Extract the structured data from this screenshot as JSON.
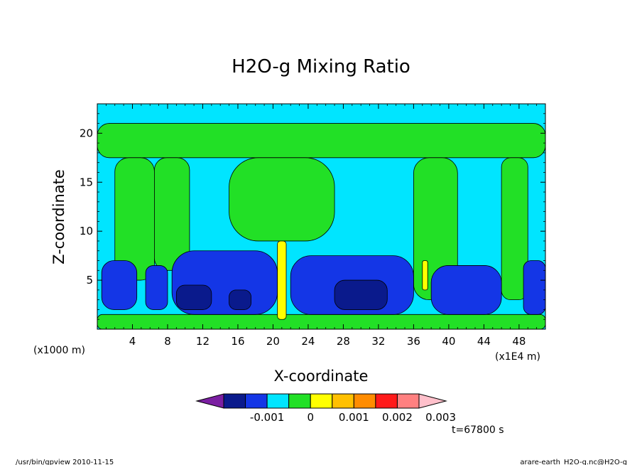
{
  "chart_data": {
    "type": "heatmap",
    "title": "H2O-g Mixing Ratio",
    "xlabel": "X-coordinate",
    "ylabel": "Z-coordinate",
    "x_unit_left": "(x1000 m)",
    "x_unit_right": "(x1E4 m)",
    "x_range": [
      0,
      51
    ],
    "y_range": [
      0,
      23
    ],
    "x_ticks": [
      4,
      8,
      12,
      16,
      20,
      24,
      28,
      32,
      36,
      40,
      44,
      48
    ],
    "y_ticks": [
      5,
      10,
      15,
      20
    ],
    "colorbar": {
      "colors": [
        "#7b1fa2",
        "#0a1a8c",
        "#1436e6",
        "#00e5ff",
        "#22e026",
        "#ffff00",
        "#ffc000",
        "#ff8c00",
        "#ff1a1a",
        "#ff8080",
        "#ffc0cb"
      ],
      "labels": [
        "-0.001",
        "0",
        "0.001",
        "0.002",
        "0.003"
      ],
      "label_positions": [
        -0.001,
        0,
        0.001,
        0.002,
        0.003
      ]
    },
    "regions": [
      {
        "level": "cyan",
        "x": [
          0,
          51
        ],
        "z": [
          0,
          23
        ]
      },
      {
        "level": "green",
        "x": [
          0,
          51
        ],
        "z": [
          17.5,
          21
        ]
      },
      {
        "level": "green",
        "x": [
          2,
          6.5
        ],
        "z": [
          5,
          17.5
        ]
      },
      {
        "level": "green",
        "x": [
          6.5,
          10.5
        ],
        "z": [
          6,
          17.5
        ]
      },
      {
        "level": "green",
        "x": [
          15,
          27
        ],
        "z": [
          9,
          17.5
        ]
      },
      {
        "level": "green",
        "x": [
          36,
          41
        ],
        "z": [
          3,
          17.5
        ]
      },
      {
        "level": "green",
        "x": [
          46,
          49
        ],
        "z": [
          3,
          17.5
        ]
      },
      {
        "level": "green",
        "x": [
          0,
          51
        ],
        "z": [
          0,
          1.5
        ]
      },
      {
        "level": "blue",
        "x": [
          0.5,
          4.5
        ],
        "z": [
          2,
          7
        ]
      },
      {
        "level": "blue",
        "x": [
          5.5,
          8
        ],
        "z": [
          2,
          6.5
        ]
      },
      {
        "level": "blue",
        "x": [
          8.5,
          20.5
        ],
        "z": [
          1.5,
          8
        ]
      },
      {
        "level": "blue",
        "x": [
          22,
          36
        ],
        "z": [
          1.5,
          7.5
        ]
      },
      {
        "level": "blue",
        "x": [
          38,
          46
        ],
        "z": [
          1.5,
          6.5
        ]
      },
      {
        "level": "blue",
        "x": [
          48.5,
          51
        ],
        "z": [
          1.5,
          7
        ]
      },
      {
        "level": "navy",
        "x": [
          9,
          13
        ],
        "z": [
          2,
          4.5
        ]
      },
      {
        "level": "navy",
        "x": [
          15,
          17.5
        ],
        "z": [
          2,
          4
        ]
      },
      {
        "level": "navy",
        "x": [
          27,
          33
        ],
        "z": [
          2,
          5
        ]
      },
      {
        "level": "yellow",
        "x": [
          20.5,
          21.5
        ],
        "z": [
          1,
          9
        ]
      },
      {
        "level": "yellow",
        "x": [
          37,
          37.6
        ],
        "z": [
          4,
          7
        ]
      }
    ]
  },
  "time_label": "t=67800 s",
  "footer_left": "/usr/bin/gpview   2010-11-15",
  "footer_right": "arare-earth_H2O-g.nc@H2O-g"
}
